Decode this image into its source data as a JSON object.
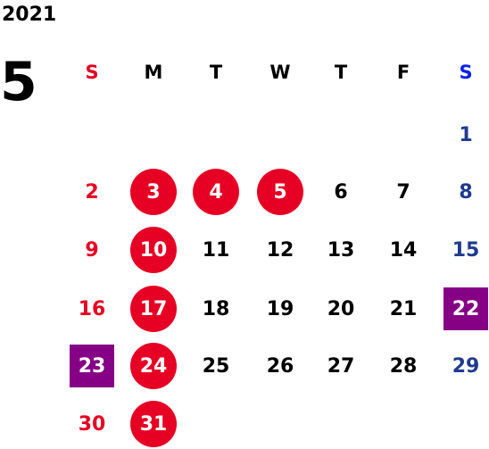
{
  "year": "2021",
  "month": "5",
  "weekdays": [
    "S",
    "M",
    "T",
    "W",
    "T",
    "F",
    "S"
  ],
  "colors": {
    "sunday": "#e60023",
    "saturday": "#1f3b8f",
    "saturday_header": "#0a22e6",
    "weekday": "#000000",
    "holiday_circle": "#e60023",
    "special_square": "#850085"
  },
  "weeks": [
    [
      null,
      null,
      null,
      null,
      null,
      null,
      {
        "day": "1"
      }
    ],
    [
      {
        "day": "2"
      },
      {
        "day": "3",
        "mark": "holiday"
      },
      {
        "day": "4",
        "mark": "holiday"
      },
      {
        "day": "5",
        "mark": "holiday"
      },
      {
        "day": "6"
      },
      {
        "day": "7"
      },
      {
        "day": "8"
      }
    ],
    [
      {
        "day": "9"
      },
      {
        "day": "10",
        "mark": "holiday"
      },
      {
        "day": "11"
      },
      {
        "day": "12"
      },
      {
        "day": "13"
      },
      {
        "day": "14"
      },
      {
        "day": "15"
      }
    ],
    [
      {
        "day": "16"
      },
      {
        "day": "17",
        "mark": "holiday"
      },
      {
        "day": "18"
      },
      {
        "day": "19"
      },
      {
        "day": "20"
      },
      {
        "day": "21"
      },
      {
        "day": "22",
        "mark": "special"
      }
    ],
    [
      {
        "day": "23",
        "mark": "special"
      },
      {
        "day": "24",
        "mark": "holiday"
      },
      {
        "day": "25"
      },
      {
        "day": "26"
      },
      {
        "day": "27"
      },
      {
        "day": "28"
      },
      {
        "day": "29"
      }
    ],
    [
      {
        "day": "30"
      },
      {
        "day": "31",
        "mark": "holiday"
      },
      null,
      null,
      null,
      null,
      null
    ]
  ]
}
